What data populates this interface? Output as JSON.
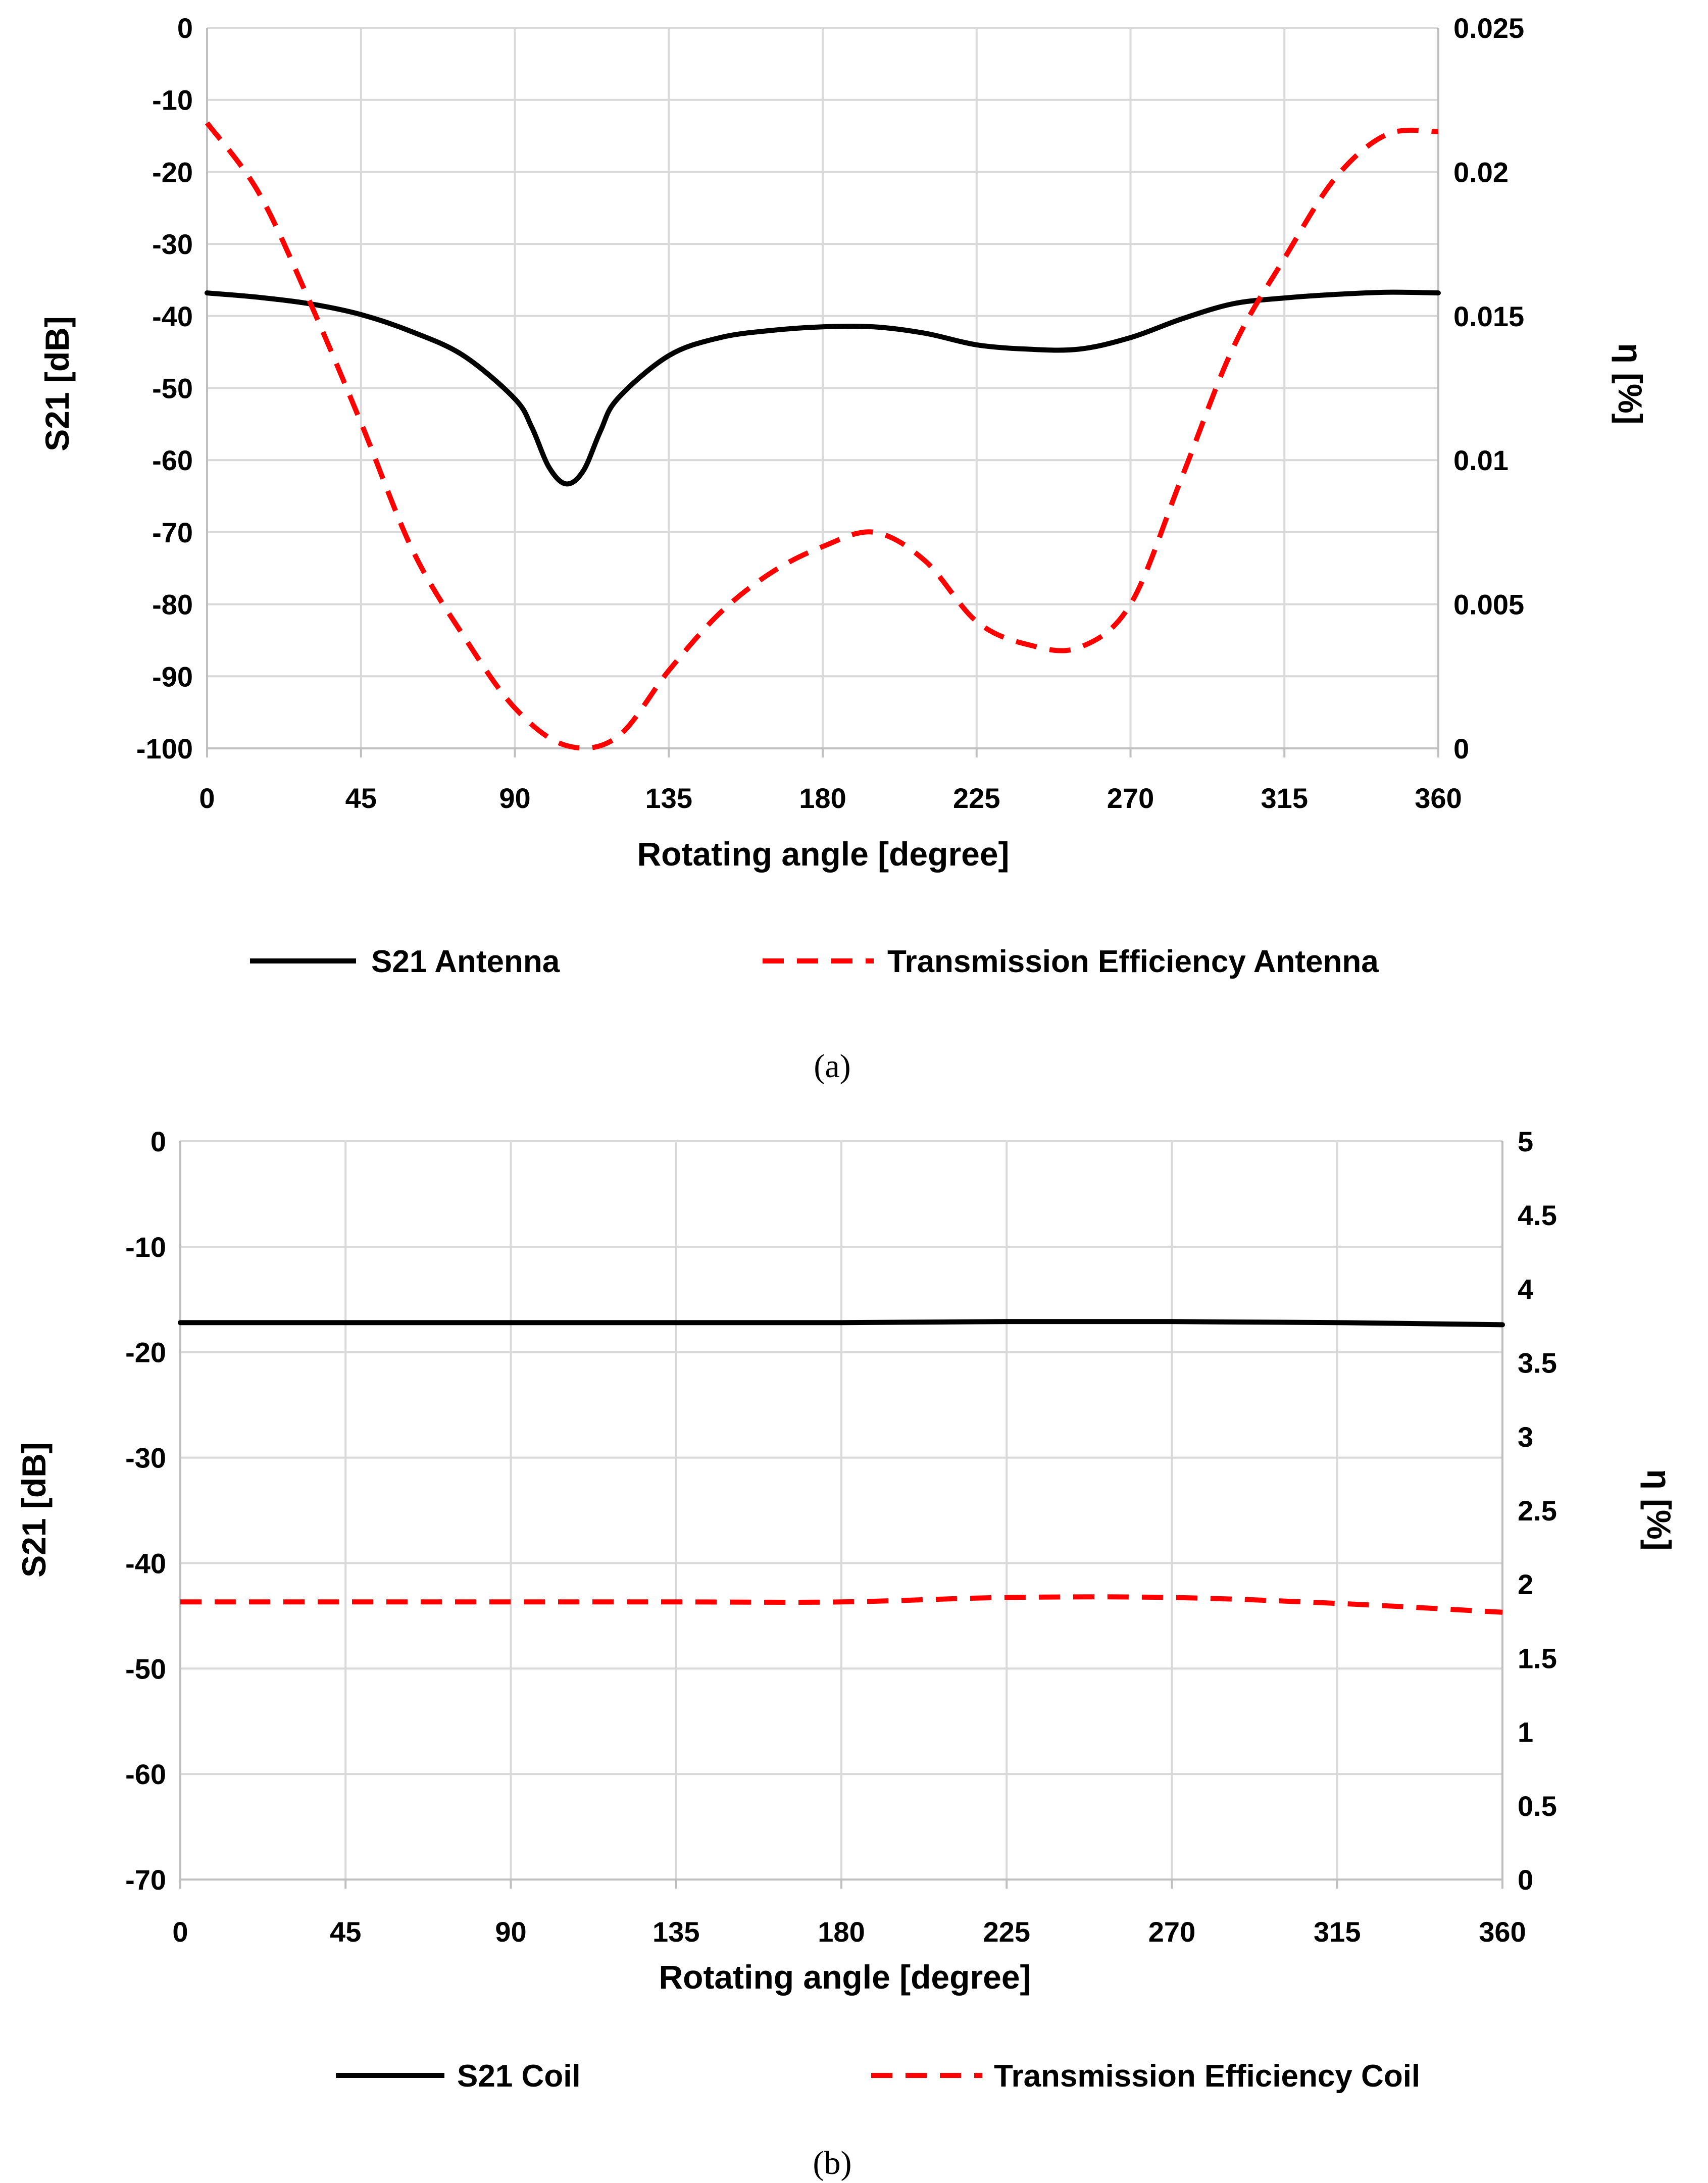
{
  "chart_data": [
    {
      "type": "line",
      "panel": "a",
      "caption": "(a)",
      "xlabel": "Rotating angle [degree]",
      "ylabel": "S21 [dB]",
      "y2label": "η [%]",
      "xlim": [
        0,
        360
      ],
      "ylim": [
        -100,
        0
      ],
      "y2lim": [
        0,
        0.025
      ],
      "xticks": [
        "0",
        "45",
        "90",
        "135",
        "180",
        "225",
        "270",
        "315",
        "360"
      ],
      "yticks": [
        "0",
        "-10",
        "-20",
        "-30",
        "-40",
        "-50",
        "-60",
        "-70",
        "-80",
        "-90",
        "-100"
      ],
      "y2ticks": [
        "0.025",
        "0.02",
        "0.015",
        "0.01",
        "0.005",
        "0"
      ],
      "grid": true,
      "legend_position": "bottom",
      "series": [
        {
          "name": "S21 Antenna",
          "axis": "left",
          "style": "solid",
          "color": "#000000",
          "x": [
            0,
            15,
            30,
            45,
            60,
            75,
            90,
            95,
            100,
            105,
            110,
            115,
            120,
            135,
            150,
            165,
            180,
            195,
            210,
            225,
            240,
            255,
            270,
            285,
            300,
            315,
            330,
            345,
            360
          ],
          "y": [
            -36.8,
            -37.4,
            -38.3,
            -39.8,
            -42.2,
            -45.5,
            -51.5,
            -55.5,
            -61.0,
            -63.3,
            -61.5,
            -56.0,
            -51.5,
            -45.5,
            -43.0,
            -42.0,
            -41.5,
            -41.5,
            -42.4,
            -44.0,
            -44.6,
            -44.6,
            -43.0,
            -40.4,
            -38.3,
            -37.5,
            -37.0,
            -36.7,
            -36.8
          ]
        },
        {
          "name": "Transmission Efficiency Antenna",
          "axis": "right",
          "style": "dashed",
          "color": "#ff0000",
          "x": [
            0,
            15,
            30,
            45,
            60,
            75,
            90,
            105,
            120,
            135,
            150,
            165,
            180,
            195,
            210,
            225,
            240,
            255,
            270,
            285,
            300,
            315,
            330,
            345,
            360
          ],
          "y": [
            0.0217,
            0.0193,
            0.0155,
            0.0113,
            0.0069,
            0.0039,
            0.0014,
            0.0001,
            0.0004,
            0.0027,
            0.0047,
            0.0061,
            0.007,
            0.0075,
            0.0065,
            0.0044,
            0.0036,
            0.0035,
            0.005,
            0.0094,
            0.0139,
            0.017,
            0.0198,
            0.0213,
            0.0214
          ]
        }
      ]
    },
    {
      "type": "line",
      "panel": "b",
      "caption": "(b)",
      "xlabel": "Rotating angle [degree]",
      "ylabel": "S21 [dB]",
      "y2label": "η [%]",
      "xlim": [
        0,
        360
      ],
      "ylim": [
        -70,
        0
      ],
      "y2lim": [
        0,
        5
      ],
      "xticks": [
        "0",
        "45",
        "90",
        "135",
        "180",
        "225",
        "270",
        "315",
        "360"
      ],
      "yticks": [
        "0",
        "-10",
        "-20",
        "-30",
        "-40",
        "-50",
        "-60",
        "-70"
      ],
      "y2ticks": [
        "5",
        "4.5",
        "4",
        "3.5",
        "3",
        "2.5",
        "2",
        "1.5",
        "1",
        "0.5",
        "0"
      ],
      "grid": true,
      "legend_position": "bottom",
      "series": [
        {
          "name": "S21 Coil",
          "axis": "left",
          "style": "solid",
          "color": "#000000",
          "x": [
            0,
            45,
            90,
            135,
            180,
            225,
            270,
            315,
            360
          ],
          "y": [
            -17.2,
            -17.2,
            -17.2,
            -17.2,
            -17.2,
            -17.1,
            -17.1,
            -17.2,
            -17.4
          ]
        },
        {
          "name": "Transmission Efficiency Coil",
          "axis": "right",
          "style": "dashed",
          "color": "#ff0000",
          "x": [
            0,
            45,
            90,
            135,
            180,
            225,
            270,
            315,
            360
          ],
          "y": [
            1.88,
            1.88,
            1.88,
            1.88,
            1.88,
            1.91,
            1.91,
            1.87,
            1.81
          ]
        }
      ]
    }
  ]
}
